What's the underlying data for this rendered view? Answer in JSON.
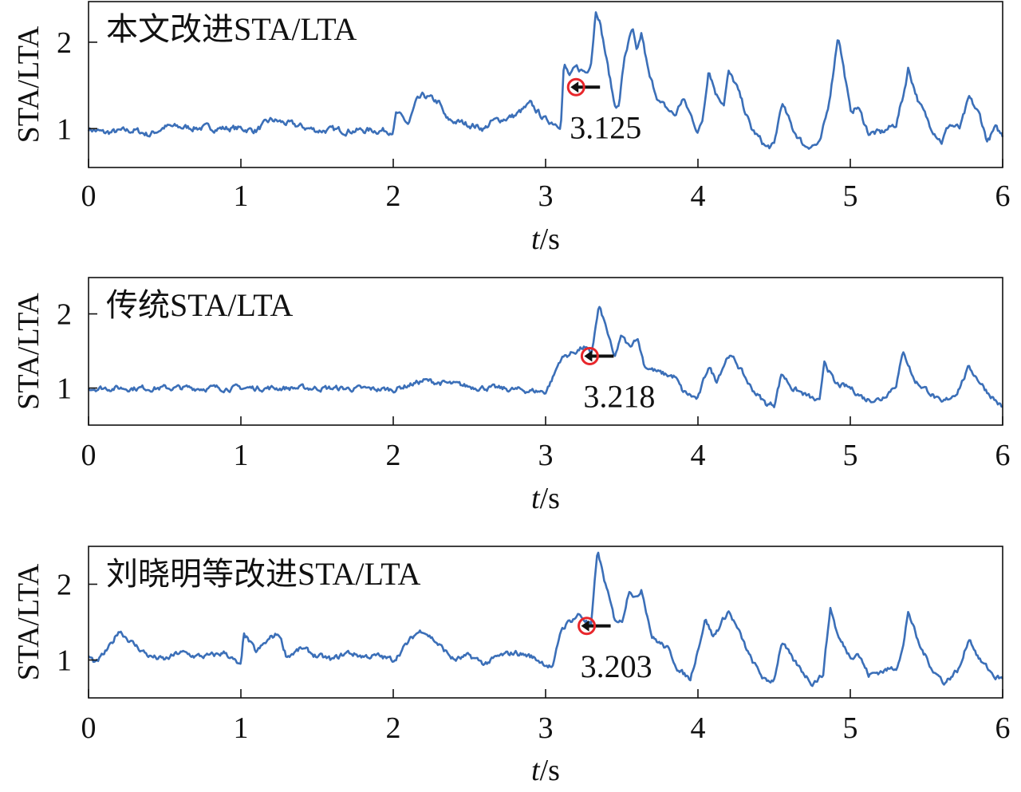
{
  "chart_data": [
    {
      "type": "line",
      "title": "本文改进STA/LTA",
      "xlabel_italic": "t",
      "xlabel_rest": "/s",
      "ylabel": "STA/LTA",
      "xlim": [
        0,
        6
      ],
      "ylim": [
        0.55,
        2.47
      ],
      "xticks": [
        "0",
        "1",
        "2",
        "3",
        "4",
        "5",
        "6"
      ],
      "yticks": [
        "1",
        "2"
      ],
      "color": "#3b6fb8",
      "marker": {
        "t": 3.2,
        "value": 1.48,
        "label": "3.125"
      },
      "series": [
        [
          0,
          1.0
        ],
        [
          0.1,
          0.95
        ],
        [
          0.3,
          0.98
        ],
        [
          0.4,
          0.93
        ],
        [
          0.5,
          1.02
        ],
        [
          1.0,
          1.0
        ],
        [
          1.1,
          0.98
        ],
        [
          1.2,
          1.1
        ],
        [
          1.5,
          0.98
        ],
        [
          2.0,
          0.98
        ],
        [
          2.02,
          1.18
        ],
        [
          2.1,
          1.05
        ],
        [
          2.15,
          1.3
        ],
        [
          2.2,
          1.38
        ],
        [
          2.3,
          1.3
        ],
        [
          2.35,
          1.1
        ],
        [
          2.5,
          1.05
        ],
        [
          2.6,
          1.0
        ],
        [
          2.65,
          1.08
        ],
        [
          2.8,
          1.15
        ],
        [
          2.9,
          1.28
        ],
        [
          3.0,
          1.1
        ],
        [
          3.1,
          1.05
        ],
        [
          3.12,
          1.74
        ],
        [
          3.16,
          1.6
        ],
        [
          3.2,
          1.7
        ],
        [
          3.27,
          1.65
        ],
        [
          3.3,
          1.8
        ],
        [
          3.33,
          2.38
        ],
        [
          3.35,
          2.3
        ],
        [
          3.4,
          1.8
        ],
        [
          3.45,
          1.3
        ],
        [
          3.48,
          1.25
        ],
        [
          3.52,
          1.85
        ],
        [
          3.57,
          2.15
        ],
        [
          3.6,
          1.85
        ],
        [
          3.63,
          2.1
        ],
        [
          3.68,
          1.6
        ],
        [
          3.75,
          1.3
        ],
        [
          3.85,
          1.15
        ],
        [
          3.9,
          1.35
        ],
        [
          3.98,
          1.05
        ],
        [
          4.0,
          0.95
        ],
        [
          4.03,
          1.1
        ],
        [
          4.07,
          1.7
        ],
        [
          4.12,
          1.4
        ],
        [
          4.17,
          1.3
        ],
        [
          4.2,
          1.65
        ],
        [
          4.25,
          1.5
        ],
        [
          4.35,
          1.0
        ],
        [
          4.45,
          0.78
        ],
        [
          4.5,
          0.8
        ],
        [
          4.55,
          1.3
        ],
        [
          4.62,
          1.0
        ],
        [
          4.7,
          0.8
        ],
        [
          4.8,
          0.82
        ],
        [
          4.85,
          1.2
        ],
        [
          4.88,
          1.55
        ],
        [
          4.92,
          2.1
        ],
        [
          4.97,
          1.55
        ],
        [
          5.0,
          1.2
        ],
        [
          5.05,
          1.25
        ],
        [
          5.12,
          0.95
        ],
        [
          5.2,
          0.95
        ],
        [
          5.3,
          1.05
        ],
        [
          5.35,
          1.4
        ],
        [
          5.38,
          1.7
        ],
        [
          5.45,
          1.3
        ],
        [
          5.52,
          1.05
        ],
        [
          5.6,
          0.85
        ],
        [
          5.65,
          1.05
        ],
        [
          5.72,
          1.0
        ],
        [
          5.78,
          1.35
        ],
        [
          5.85,
          1.15
        ],
        [
          5.9,
          0.85
        ],
        [
          5.95,
          1.0
        ],
        [
          6.0,
          0.92
        ]
      ]
    },
    {
      "type": "line",
      "title": "传统STA/LTA",
      "xlabel_italic": "t",
      "xlabel_rest": "/s",
      "ylabel": "STA/LTA",
      "xlim": [
        0,
        6
      ],
      "ylim": [
        0.5,
        2.49
      ],
      "xticks": [
        "0",
        "1",
        "2",
        "3",
        "4",
        "5",
        "6"
      ],
      "yticks": [
        "1",
        "2"
      ],
      "color": "#3b6fb8",
      "marker": {
        "t": 3.29,
        "value": 1.43,
        "label": "3.218"
      },
      "series": [
        [
          0,
          1.0
        ],
        [
          0.5,
          1.0
        ],
        [
          1.0,
          1.0
        ],
        [
          1.5,
          1.0
        ],
        [
          2.0,
          0.98
        ],
        [
          2.2,
          1.1
        ],
        [
          2.5,
          1.02
        ],
        [
          3.0,
          0.95
        ],
        [
          3.05,
          1.15
        ],
        [
          3.1,
          1.4
        ],
        [
          3.2,
          1.5
        ],
        [
          3.25,
          1.55
        ],
        [
          3.3,
          1.45
        ],
        [
          3.35,
          2.1
        ],
        [
          3.4,
          1.8
        ],
        [
          3.45,
          1.4
        ],
        [
          3.5,
          1.7
        ],
        [
          3.55,
          1.55
        ],
        [
          3.6,
          1.7
        ],
        [
          3.65,
          1.3
        ],
        [
          3.75,
          1.2
        ],
        [
          3.85,
          1.15
        ],
        [
          3.9,
          0.95
        ],
        [
          4.0,
          0.85
        ],
        [
          4.07,
          1.3
        ],
        [
          4.12,
          1.1
        ],
        [
          4.2,
          1.45
        ],
        [
          4.25,
          1.35
        ],
        [
          4.35,
          1.0
        ],
        [
          4.45,
          0.78
        ],
        [
          4.5,
          0.78
        ],
        [
          4.55,
          1.2
        ],
        [
          4.62,
          1.0
        ],
        [
          4.8,
          0.8
        ],
        [
          4.83,
          1.38
        ],
        [
          4.9,
          1.05
        ],
        [
          5.0,
          1.0
        ],
        [
          5.1,
          0.85
        ],
        [
          5.2,
          0.85
        ],
        [
          5.3,
          1.05
        ],
        [
          5.35,
          1.5
        ],
        [
          5.42,
          1.1
        ],
        [
          5.52,
          0.95
        ],
        [
          5.6,
          0.78
        ],
        [
          5.7,
          0.95
        ],
        [
          5.78,
          1.28
        ],
        [
          5.9,
          0.95
        ],
        [
          6.0,
          0.73
        ]
      ]
    },
    {
      "type": "line",
      "title": "刘晓明等改进STA/LTA",
      "xlabel_italic": "t",
      "xlabel_rest": "/s",
      "ylabel": "STA/LTA",
      "xlim": [
        0,
        6
      ],
      "ylim": [
        0.5,
        2.5
      ],
      "xticks": [
        "0",
        "1",
        "2",
        "3",
        "4",
        "5",
        "6"
      ],
      "yticks": [
        "1",
        "2"
      ],
      "color": "#3b6fb8",
      "marker": {
        "t": 3.27,
        "value": 1.45,
        "label": "3.203"
      },
      "series": [
        [
          0,
          1.05
        ],
        [
          0.05,
          0.95
        ],
        [
          0.15,
          1.2
        ],
        [
          0.2,
          1.4
        ],
        [
          0.3,
          1.2
        ],
        [
          0.4,
          1.05
        ],
        [
          0.5,
          1.0
        ],
        [
          0.6,
          1.1
        ],
        [
          0.7,
          1.05
        ],
        [
          0.8,
          1.05
        ],
        [
          0.9,
          1.1
        ],
        [
          1.0,
          0.9
        ],
        [
          1.02,
          1.35
        ],
        [
          1.1,
          1.1
        ],
        [
          1.2,
          1.3
        ],
        [
          1.25,
          1.35
        ],
        [
          1.3,
          1.05
        ],
        [
          1.4,
          1.15
        ],
        [
          1.5,
          1.05
        ],
        [
          1.6,
          1.0
        ],
        [
          1.7,
          1.1
        ],
        [
          1.8,
          1.05
        ],
        [
          1.9,
          1.05
        ],
        [
          2.0,
          1.0
        ],
        [
          2.15,
          1.35
        ],
        [
          2.2,
          1.4
        ],
        [
          2.3,
          1.2
        ],
        [
          2.4,
          1.0
        ],
        [
          2.5,
          1.05
        ],
        [
          2.6,
          0.95
        ],
        [
          2.7,
          1.05
        ],
        [
          2.8,
          1.1
        ],
        [
          2.9,
          1.05
        ],
        [
          3.0,
          0.95
        ],
        [
          3.05,
          0.9
        ],
        [
          3.1,
          1.4
        ],
        [
          3.15,
          1.5
        ],
        [
          3.22,
          1.6
        ],
        [
          3.3,
          1.45
        ],
        [
          3.34,
          2.45
        ],
        [
          3.38,
          2.1
        ],
        [
          3.45,
          1.55
        ],
        [
          3.5,
          1.5
        ],
        [
          3.55,
          1.95
        ],
        [
          3.6,
          1.8
        ],
        [
          3.63,
          1.95
        ],
        [
          3.7,
          1.3
        ],
        [
          3.8,
          1.15
        ],
        [
          3.88,
          0.85
        ],
        [
          3.95,
          0.75
        ],
        [
          4.05,
          1.55
        ],
        [
          4.1,
          1.3
        ],
        [
          4.2,
          1.65
        ],
        [
          4.25,
          1.45
        ],
        [
          4.35,
          1.0
        ],
        [
          4.45,
          0.7
        ],
        [
          4.5,
          0.75
        ],
        [
          4.55,
          1.25
        ],
        [
          4.62,
          1.0
        ],
        [
          4.75,
          0.7
        ],
        [
          4.82,
          0.8
        ],
        [
          4.87,
          1.7
        ],
        [
          4.92,
          1.3
        ],
        [
          5.0,
          1.05
        ],
        [
          5.05,
          1.1
        ],
        [
          5.12,
          0.8
        ],
        [
          5.2,
          0.85
        ],
        [
          5.3,
          0.9
        ],
        [
          5.35,
          1.2
        ],
        [
          5.38,
          1.65
        ],
        [
          5.45,
          1.2
        ],
        [
          5.55,
          0.85
        ],
        [
          5.62,
          0.7
        ],
        [
          5.72,
          0.9
        ],
        [
          5.78,
          1.3
        ],
        [
          5.85,
          1.0
        ],
        [
          5.95,
          0.78
        ],
        [
          6.0,
          0.75
        ]
      ]
    }
  ]
}
